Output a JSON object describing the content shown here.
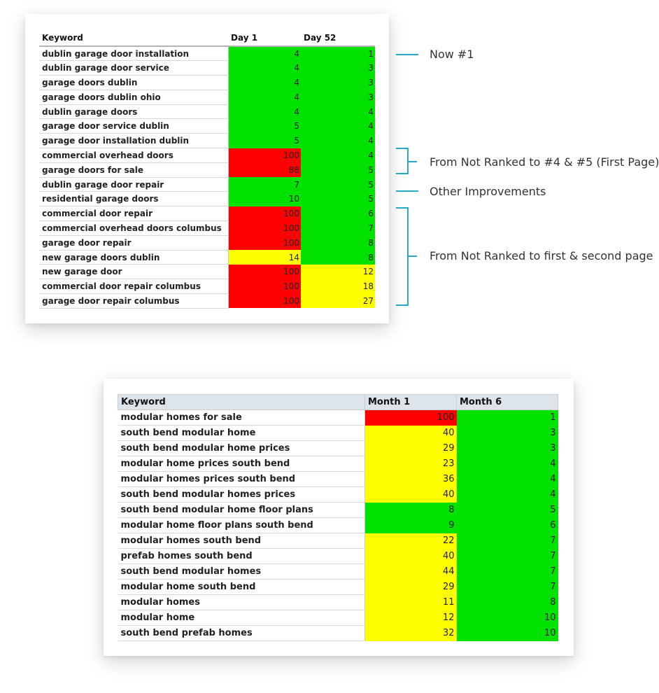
{
  "table1": {
    "headers": [
      "Keyword",
      "Day 1",
      "Day 52"
    ],
    "rows": [
      {
        "keyword": "dublin garage door installation",
        "day1": "4",
        "day52": "1",
        "c1": "g",
        "c2": "g"
      },
      {
        "keyword": "dublin garage door service",
        "day1": "4",
        "day52": "3",
        "c1": "g",
        "c2": "g"
      },
      {
        "keyword": "garage doors dublin",
        "day1": "4",
        "day52": "3",
        "c1": "g",
        "c2": "g"
      },
      {
        "keyword": "garage doors dublin ohio",
        "day1": "4",
        "day52": "3",
        "c1": "g",
        "c2": "g"
      },
      {
        "keyword": "dublin garage doors",
        "day1": "4",
        "day52": "4",
        "c1": "g",
        "c2": "g"
      },
      {
        "keyword": "garage door service dublin",
        "day1": "5",
        "day52": "4",
        "c1": "g",
        "c2": "g"
      },
      {
        "keyword": "garage door installation  dublin",
        "day1": "5",
        "day52": "4",
        "c1": "g",
        "c2": "g"
      },
      {
        "keyword": "commercial overhead doors",
        "day1": "100",
        "day52": "4",
        "c1": "r",
        "c2": "g"
      },
      {
        "keyword": "garage doors for sale",
        "day1": "88",
        "day52": "5",
        "c1": "r",
        "c2": "g"
      },
      {
        "keyword": "dublin garage door repair",
        "day1": "7",
        "day52": "5",
        "c1": "g",
        "c2": "g"
      },
      {
        "keyword": "residential garage doors",
        "day1": "10",
        "day52": "5",
        "c1": "g",
        "c2": "g"
      },
      {
        "keyword": "commercial door repair",
        "day1": "100",
        "day52": "6",
        "c1": "r",
        "c2": "g"
      },
      {
        "keyword": "commercial overhead doors columbus",
        "day1": "100",
        "day52": "7",
        "c1": "r",
        "c2": "g"
      },
      {
        "keyword": "garage door repair",
        "day1": "100",
        "day52": "8",
        "c1": "r",
        "c2": "g"
      },
      {
        "keyword": "new garage doors dublin",
        "day1": "14",
        "day52": "8",
        "c1": "y",
        "c2": "g"
      },
      {
        "keyword": "new garage door",
        "day1": "100",
        "day52": "12",
        "c1": "r",
        "c2": "y"
      },
      {
        "keyword": "commercial door repair columbus",
        "day1": "100",
        "day52": "18",
        "c1": "r",
        "c2": "y"
      },
      {
        "keyword": "garage door repair columbus",
        "day1": "100",
        "day52": "27",
        "c1": "r",
        "c2": "y"
      }
    ]
  },
  "annotations": {
    "now1": "Now #1",
    "first_page": "From Not Ranked to #4 & #5 (First Page)",
    "other": "Other Improvements",
    "first_second": "From Not Ranked to first & second page"
  },
  "table2": {
    "headers": [
      "Keyword",
      "Month 1",
      "Month 6"
    ],
    "rows": [
      {
        "keyword": "modular homes for sale",
        "m1": "100",
        "m6": "1",
        "c1": "r",
        "c2": "g"
      },
      {
        "keyword": "south bend modular home",
        "m1": "40",
        "m6": "3",
        "c1": "y",
        "c2": "g"
      },
      {
        "keyword": "south bend modular home prices",
        "m1": "29",
        "m6": "3",
        "c1": "y",
        "c2": "g"
      },
      {
        "keyword": "modular home prices south bend",
        "m1": "23",
        "m6": "4",
        "c1": "y",
        "c2": "g"
      },
      {
        "keyword": "modular homes prices south bend",
        "m1": "36",
        "m6": "4",
        "c1": "y",
        "c2": "g"
      },
      {
        "keyword": "south bend modular homes prices",
        "m1": "40",
        "m6": "4",
        "c1": "y",
        "c2": "g"
      },
      {
        "keyword": "south bend modular home floor plans",
        "m1": "8",
        "m6": "5",
        "c1": "g",
        "c2": "g"
      },
      {
        "keyword": "modular home floor plans south bend",
        "m1": "9",
        "m6": "6",
        "c1": "g",
        "c2": "g"
      },
      {
        "keyword": "modular homes south bend",
        "m1": "22",
        "m6": "7",
        "c1": "y",
        "c2": "g"
      },
      {
        "keyword": "prefab homes south bend",
        "m1": "40",
        "m6": "7",
        "c1": "y",
        "c2": "g"
      },
      {
        "keyword": "south bend modular homes",
        "m1": "44",
        "m6": "7",
        "c1": "y",
        "c2": "g"
      },
      {
        "keyword": "modular home south bend",
        "m1": "29",
        "m6": "7",
        "c1": "y",
        "c2": "g"
      },
      {
        "keyword": "modular homes",
        "m1": "11",
        "m6": "8",
        "c1": "y",
        "c2": "g"
      },
      {
        "keyword": "modular home",
        "m1": "12",
        "m6": "10",
        "c1": "y",
        "c2": "g"
      },
      {
        "keyword": "south bend prefab homes",
        "m1": "32",
        "m6": "10",
        "c1": "y",
        "c2": "g"
      }
    ]
  },
  "colors": {
    "green": "#00e100",
    "red": "#ff0000",
    "yellow": "#ffff00",
    "accent": "#2aa7c2"
  }
}
